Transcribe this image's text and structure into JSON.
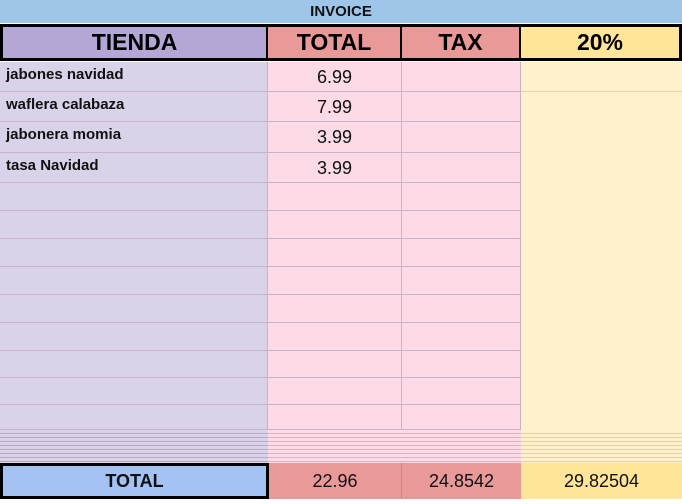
{
  "title": "INVOICE",
  "headers": [
    "TIENDA",
    "TOTAL",
    "TAX",
    "20%"
  ],
  "rows": [
    {
      "tienda": "jabones navidad",
      "total": "6.99"
    },
    {
      "tienda": "waflera calabaza",
      "total": "7.99"
    },
    {
      "tienda": "jabonera momia",
      "total": "3.99"
    },
    {
      "tienda": "tasa Navidad",
      "total": "3.99"
    },
    {
      "tienda": "",
      "total": ""
    },
    {
      "tienda": "",
      "total": ""
    },
    {
      "tienda": "",
      "total": ""
    },
    {
      "tienda": "",
      "total": ""
    },
    {
      "tienda": "",
      "total": ""
    },
    {
      "tienda": "",
      "total": ""
    },
    {
      "tienda": "",
      "total": ""
    },
    {
      "tienda": "",
      "total": ""
    },
    {
      "tienda": "",
      "total": ""
    }
  ],
  "totals": {
    "label": "TOTAL",
    "total": "22.96",
    "tax": "24.8542",
    "pct": "29.82504"
  },
  "colors": {
    "title": "#9fc5e8",
    "tienda_header": "#b4a7d6",
    "total_header": "#ea9999",
    "pct_header": "#ffe599",
    "total_label": "#a4c2f4"
  }
}
